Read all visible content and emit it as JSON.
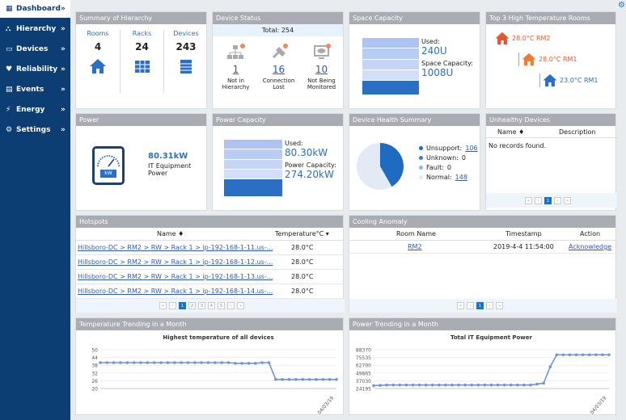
{
  "nav": [
    {
      "icon": "▦",
      "label": "Dashboard",
      "chev": "»"
    },
    {
      "icon": "⛬",
      "label": "Hierarchy",
      "chev": "»"
    },
    {
      "icon": "▭",
      "label": "Devices",
      "chev": "»"
    },
    {
      "icon": "♥",
      "label": "Reliability",
      "chev": "»"
    },
    {
      "icon": "▤",
      "label": "Events",
      "chev": "»"
    },
    {
      "icon": "⚡",
      "label": "Energy",
      "chev": "»"
    },
    {
      "icon": "⚙",
      "label": "Settings",
      "chev": "»"
    }
  ],
  "hierarchy": {
    "title": "Summary of Hierarchy",
    "rooms_label": "Rooms",
    "rooms": "4",
    "racks_label": "Racks",
    "racks": "24",
    "devices_label": "Devices",
    "devices": "243"
  },
  "device_status": {
    "title": "Device Status",
    "total": "Total: 254",
    "items": [
      {
        "count": "1",
        "label1": "Not in",
        "label2": "Hierarchy"
      },
      {
        "count": "16",
        "label1": "Connection",
        "label2": "Lost"
      },
      {
        "count": "10",
        "label1": "Not Being",
        "label2": "Monitored"
      }
    ]
  },
  "space": {
    "title": "Space Capacity",
    "used_label": "Used:",
    "used": "240U",
    "cap_label": "Space Capacity:",
    "cap": "1008U",
    "used_fraction": 0.238
  },
  "temp_rooms": {
    "title": "Top 3 High Temperature Rooms",
    "rooms": [
      "28.0°C RM2",
      "28.0°C RM1",
      "23.0°C RM1"
    ]
  },
  "power": {
    "title": "Power",
    "value": "80.31kW",
    "label1": "IT Equipment",
    "label2": "Power",
    "meter_label": "kW"
  },
  "power_cap": {
    "title": "Power Capacity",
    "used_label": "Used:",
    "used": "80.30kW",
    "cap_label": "Power Capacity:",
    "cap": "274.20kW",
    "used_fraction": 0.293
  },
  "health": {
    "title": "Device Health Summary",
    "items": [
      {
        "label": "Unsupport: ",
        "value": "106",
        "color": "#1f6bc1",
        "link": true
      },
      {
        "label": "Unknown: ",
        "value": "0",
        "color": "#3a7fd0",
        "link": false
      },
      {
        "label": "Fault: ",
        "value": "0",
        "color": "#8fb6ea",
        "link": false
      },
      {
        "label": "Normal: ",
        "value": "148",
        "color": "#e4e9f6",
        "link": true
      }
    ]
  },
  "unhealthy": {
    "title": "Unhealthy Devices",
    "col_name": "Name ♦",
    "col_desc": "Description",
    "empty": "No records found.",
    "pages": [
      "«",
      "‹",
      "1",
      "›",
      "»"
    ]
  },
  "hotspots": {
    "title": "Hotspots",
    "col_name": "Name ♦",
    "col_temp": "Temperature°C ▾",
    "rows": [
      {
        "name": "Hillsboro-DC > RM2 > RW > Rack 1 > ip-192-168-1-11.us-...",
        "temp": "28.0°C"
      },
      {
        "name": "Hillsboro-DC > RM2 > RW > Rack 1 > ip-192-168-1-12.us-...",
        "temp": "28.0°C"
      },
      {
        "name": "Hillsboro-DC > RM2 > RW > Rack 1 > ip-192-168-1-13.us-...",
        "temp": "28.0°C"
      },
      {
        "name": "Hillsboro-DC > RM2 > RW > Rack 1 > ip-192-168-1-14.us-...",
        "temp": "28.0°C"
      }
    ],
    "pages": [
      "«",
      "‹",
      "1",
      "2",
      "3",
      "4",
      "5",
      "›",
      "»"
    ]
  },
  "cooling": {
    "title": "Cooling Anomaly",
    "col_room": "Room Name",
    "col_time": "Timestamp",
    "col_action": "Action",
    "row": {
      "room": "RM2",
      "time": "2019-4-4 11:54:00",
      "action": "Acknowledge"
    },
    "pages": [
      "«",
      "‹",
      "1",
      "›",
      "»"
    ]
  },
  "temp_trend": {
    "title": "Temperature Trending in a Month"
  },
  "power_trend": {
    "title": "Power Trending in a Month"
  },
  "chart_data": [
    {
      "type": "line",
      "title": "Highest temperature of all devices",
      "yticks": [
        "50",
        "44",
        "38",
        "32",
        "26",
        "20"
      ],
      "ylim": [
        20,
        50
      ],
      "xlabel": "04/03/19",
      "values": [
        40,
        40,
        40,
        40,
        40,
        40,
        40,
        40,
        40,
        40,
        40,
        40,
        40,
        40,
        40,
        40,
        40,
        40,
        40,
        40,
        39.5,
        39.5,
        39.5,
        39.5,
        40,
        40,
        27,
        27,
        27,
        27,
        27,
        27,
        27,
        27,
        27,
        27
      ],
      "line_color": "#6e95dc"
    },
    {
      "type": "line",
      "title": "Total IT Equipment Power",
      "yticks": [
        "88370",
        "75535",
        "62700",
        "49865",
        "37030",
        "24195"
      ],
      "ylim": [
        24195,
        88370
      ],
      "xlabel": "04/03/19",
      "values": [
        29000,
        29500,
        30000,
        30000,
        30000,
        30000,
        30000,
        30000,
        30000,
        30000,
        30000,
        30000,
        30000,
        30000,
        30000,
        30000,
        30000,
        30000,
        30000,
        30000,
        30000,
        30000,
        30000,
        30000,
        30000,
        31500,
        33000,
        60000,
        80000,
        80000,
        80000,
        80000,
        80000,
        80000,
        80000,
        80000,
        80000
      ],
      "line_color": "#6e95dc"
    }
  ]
}
